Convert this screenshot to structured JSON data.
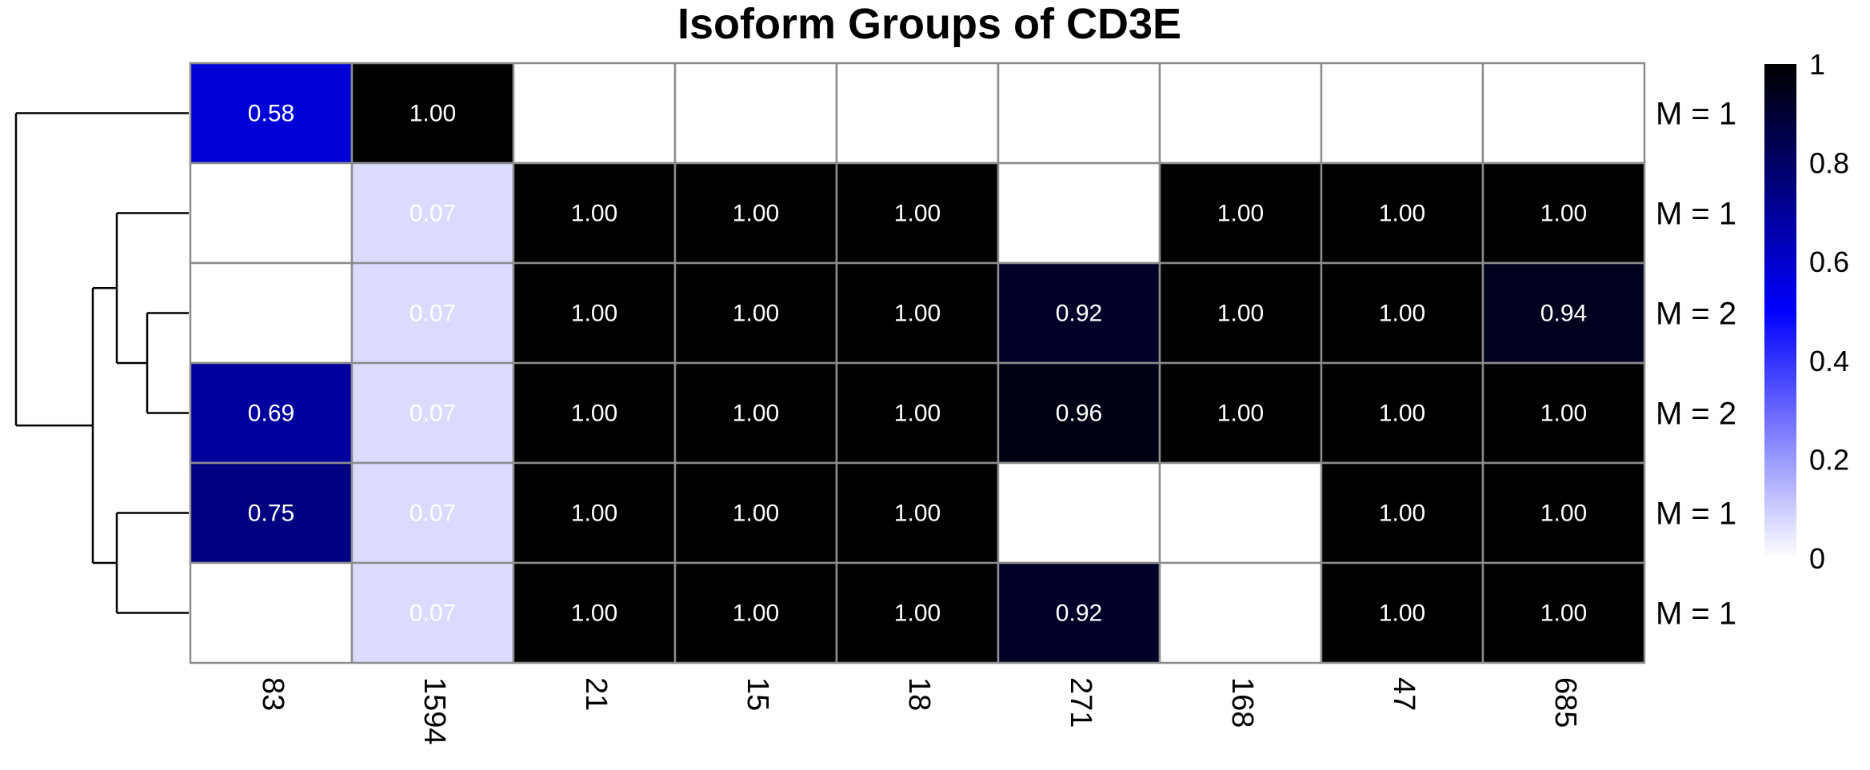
{
  "chart_data": {
    "type": "heatmap",
    "title": "Isoform Groups of CD3E",
    "columns": [
      "83",
      "1594",
      "21",
      "15",
      "18",
      "271",
      "168",
      "47",
      "685"
    ],
    "rows": [
      "M = 1",
      "M = 1",
      "M = 2",
      "M = 2",
      "M = 1",
      "M = 1"
    ],
    "values": [
      [
        0.58,
        1.0,
        null,
        null,
        null,
        null,
        null,
        null,
        null
      ],
      [
        null,
        0.07,
        1.0,
        1.0,
        1.0,
        null,
        1.0,
        1.0,
        1.0
      ],
      [
        null,
        0.07,
        1.0,
        1.0,
        1.0,
        0.92,
        1.0,
        1.0,
        0.94
      ],
      [
        0.69,
        0.07,
        1.0,
        1.0,
        1.0,
        0.96,
        1.0,
        1.0,
        1.0
      ],
      [
        0.75,
        0.07,
        1.0,
        1.0,
        1.0,
        null,
        null,
        1.0,
        1.0
      ],
      [
        null,
        0.07,
        1.0,
        1.0,
        1.0,
        0.92,
        null,
        1.0,
        1.0
      ]
    ],
    "labels": [
      [
        "0.58",
        "1.00",
        "",
        "",
        "",
        "",
        "",
        "",
        ""
      ],
      [
        "",
        "0.07",
        "1.00",
        "1.00",
        "1.00",
        "",
        "1.00",
        "1.00",
        "1.00"
      ],
      [
        "",
        "0.07",
        "1.00",
        "1.00",
        "1.00",
        "0.92",
        "1.00",
        "1.00",
        "0.94"
      ],
      [
        "0.69",
        "0.07",
        "1.00",
        "1.00",
        "1.00",
        "0.96",
        "1.00",
        "1.00",
        "1.00"
      ],
      [
        "0.75",
        "0.07",
        "1.00",
        "1.00",
        "1.00",
        "",
        "",
        "1.00",
        "1.00"
      ],
      [
        "",
        "0.07",
        "1.00",
        "1.00",
        "1.00",
        "0.92",
        "",
        "1.00",
        "1.00"
      ]
    ],
    "color_scale": {
      "min": 0,
      "max": 1,
      "stops": [
        {
          "value": 0,
          "color": "#ffffff"
        },
        {
          "value": 0.5,
          "color": "#0000ff"
        },
        {
          "value": 1,
          "color": "#000000"
        }
      ],
      "ticks": [
        0,
        0.2,
        0.4,
        0.6,
        0.8,
        1
      ],
      "tick_labels": [
        "0",
        "0.2",
        "0.4",
        "0.6",
        "0.8",
        "1"
      ]
    },
    "dendrogram": {
      "side": "left",
      "merges": [
        [
          2,
          3
        ],
        [
          4,
          5
        ],
        [
          1,
          "2+3"
        ],
        [
          "1+2+3",
          "4+5"
        ],
        [
          0,
          "1-5"
        ]
      ]
    },
    "grid_color": "#8c8c8c"
  }
}
